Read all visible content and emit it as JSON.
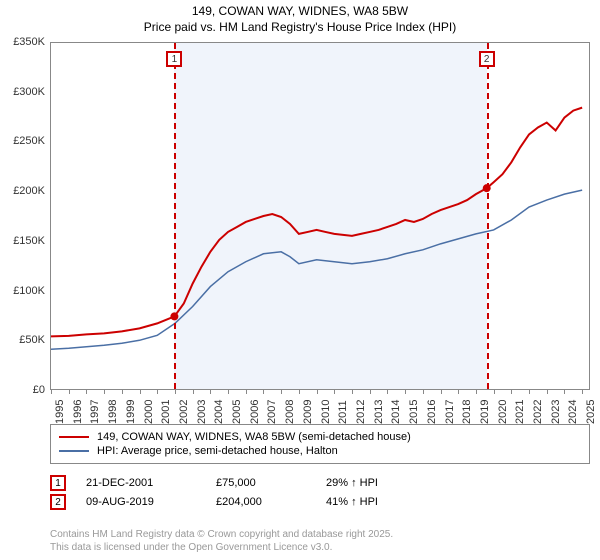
{
  "title_line1": "149, COWAN WAY, WIDNES, WA8 5BW",
  "title_line2": "Price paid vs. HM Land Registry's House Price Index (HPI)",
  "chart": {
    "type": "line",
    "xlim": [
      1995,
      2025.5
    ],
    "ylim": [
      0,
      350000
    ],
    "ytick_step": 50000,
    "yticks": [
      "£0",
      "£50K",
      "£100K",
      "£150K",
      "£200K",
      "£250K",
      "£300K",
      "£350K"
    ],
    "xticks": [
      1995,
      1996,
      1997,
      1998,
      1999,
      2000,
      2001,
      2002,
      2003,
      2004,
      2005,
      2006,
      2007,
      2008,
      2009,
      2010,
      2011,
      2012,
      2013,
      2014,
      2015,
      2016,
      2017,
      2018,
      2019,
      2020,
      2021,
      2022,
      2023,
      2024,
      2025
    ],
    "shaded_start": 2001.97,
    "shaded_end": 2019.61,
    "background_color": "#ffffff",
    "shaded_color": "#f0f4fb",
    "border_color": "#888888",
    "series": [
      {
        "name": "property",
        "color": "#cc0000",
        "width": 2,
        "data": [
          [
            1995,
            55000
          ],
          [
            1996,
            55500
          ],
          [
            1997,
            57000
          ],
          [
            1998,
            58000
          ],
          [
            1999,
            60000
          ],
          [
            2000,
            63000
          ],
          [
            2001,
            68000
          ],
          [
            2001.97,
            75000
          ],
          [
            2002.5,
            88000
          ],
          [
            2003,
            108000
          ],
          [
            2003.5,
            125000
          ],
          [
            2004,
            140000
          ],
          [
            2004.5,
            152000
          ],
          [
            2005,
            160000
          ],
          [
            2005.5,
            165000
          ],
          [
            2006,
            170000
          ],
          [
            2006.5,
            173000
          ],
          [
            2007,
            176000
          ],
          [
            2007.5,
            178000
          ],
          [
            2008,
            175000
          ],
          [
            2008.5,
            168000
          ],
          [
            2009,
            158000
          ],
          [
            2009.5,
            160000
          ],
          [
            2010,
            162000
          ],
          [
            2010.5,
            160000
          ],
          [
            2011,
            158000
          ],
          [
            2011.5,
            157000
          ],
          [
            2012,
            156000
          ],
          [
            2012.5,
            158000
          ],
          [
            2013,
            160000
          ],
          [
            2013.5,
            162000
          ],
          [
            2014,
            165000
          ],
          [
            2014.5,
            168000
          ],
          [
            2015,
            172000
          ],
          [
            2015.5,
            170000
          ],
          [
            2016,
            173000
          ],
          [
            2016.5,
            178000
          ],
          [
            2017,
            182000
          ],
          [
            2017.5,
            185000
          ],
          [
            2018,
            188000
          ],
          [
            2018.5,
            192000
          ],
          [
            2019,
            198000
          ],
          [
            2019.61,
            204000
          ],
          [
            2020,
            210000
          ],
          [
            2020.5,
            218000
          ],
          [
            2021,
            230000
          ],
          [
            2021.5,
            245000
          ],
          [
            2022,
            258000
          ],
          [
            2022.5,
            265000
          ],
          [
            2023,
            270000
          ],
          [
            2023.5,
            262000
          ],
          [
            2024,
            275000
          ],
          [
            2024.5,
            282000
          ],
          [
            2025,
            285000
          ]
        ]
      },
      {
        "name": "hpi",
        "color": "#4a6fa5",
        "width": 1.5,
        "data": [
          [
            1995,
            42000
          ],
          [
            1996,
            43000
          ],
          [
            1997,
            44500
          ],
          [
            1998,
            46000
          ],
          [
            1999,
            48000
          ],
          [
            2000,
            51000
          ],
          [
            2001,
            56000
          ],
          [
            2002,
            68000
          ],
          [
            2003,
            85000
          ],
          [
            2004,
            105000
          ],
          [
            2005,
            120000
          ],
          [
            2006,
            130000
          ],
          [
            2007,
            138000
          ],
          [
            2008,
            140000
          ],
          [
            2008.5,
            135000
          ],
          [
            2009,
            128000
          ],
          [
            2010,
            132000
          ],
          [
            2011,
            130000
          ],
          [
            2012,
            128000
          ],
          [
            2013,
            130000
          ],
          [
            2014,
            133000
          ],
          [
            2015,
            138000
          ],
          [
            2016,
            142000
          ],
          [
            2017,
            148000
          ],
          [
            2018,
            153000
          ],
          [
            2019,
            158000
          ],
          [
            2020,
            162000
          ],
          [
            2021,
            172000
          ],
          [
            2022,
            185000
          ],
          [
            2023,
            192000
          ],
          [
            2024,
            198000
          ],
          [
            2025,
            202000
          ]
        ]
      }
    ],
    "markers": [
      {
        "n": "1",
        "year": 2001.97,
        "price": 75000
      },
      {
        "n": "2",
        "year": 2019.61,
        "price": 204000
      }
    ]
  },
  "legend": {
    "items": [
      {
        "color": "#cc0000",
        "width": 2,
        "label": "149, COWAN WAY, WIDNES, WA8 5BW (semi-detached house)"
      },
      {
        "color": "#4a6fa5",
        "width": 1.5,
        "label": "HPI: Average price, semi-detached house, Halton"
      }
    ]
  },
  "transactions": [
    {
      "n": "1",
      "date": "21-DEC-2001",
      "price": "£75,000",
      "hpi": "29% ↑ HPI"
    },
    {
      "n": "2",
      "date": "09-AUG-2019",
      "price": "£204,000",
      "hpi": "41% ↑ HPI"
    }
  ],
  "footer_line1": "Contains HM Land Registry data © Crown copyright and database right 2025.",
  "footer_line2": "This data is licensed under the Open Government Licence v3.0."
}
